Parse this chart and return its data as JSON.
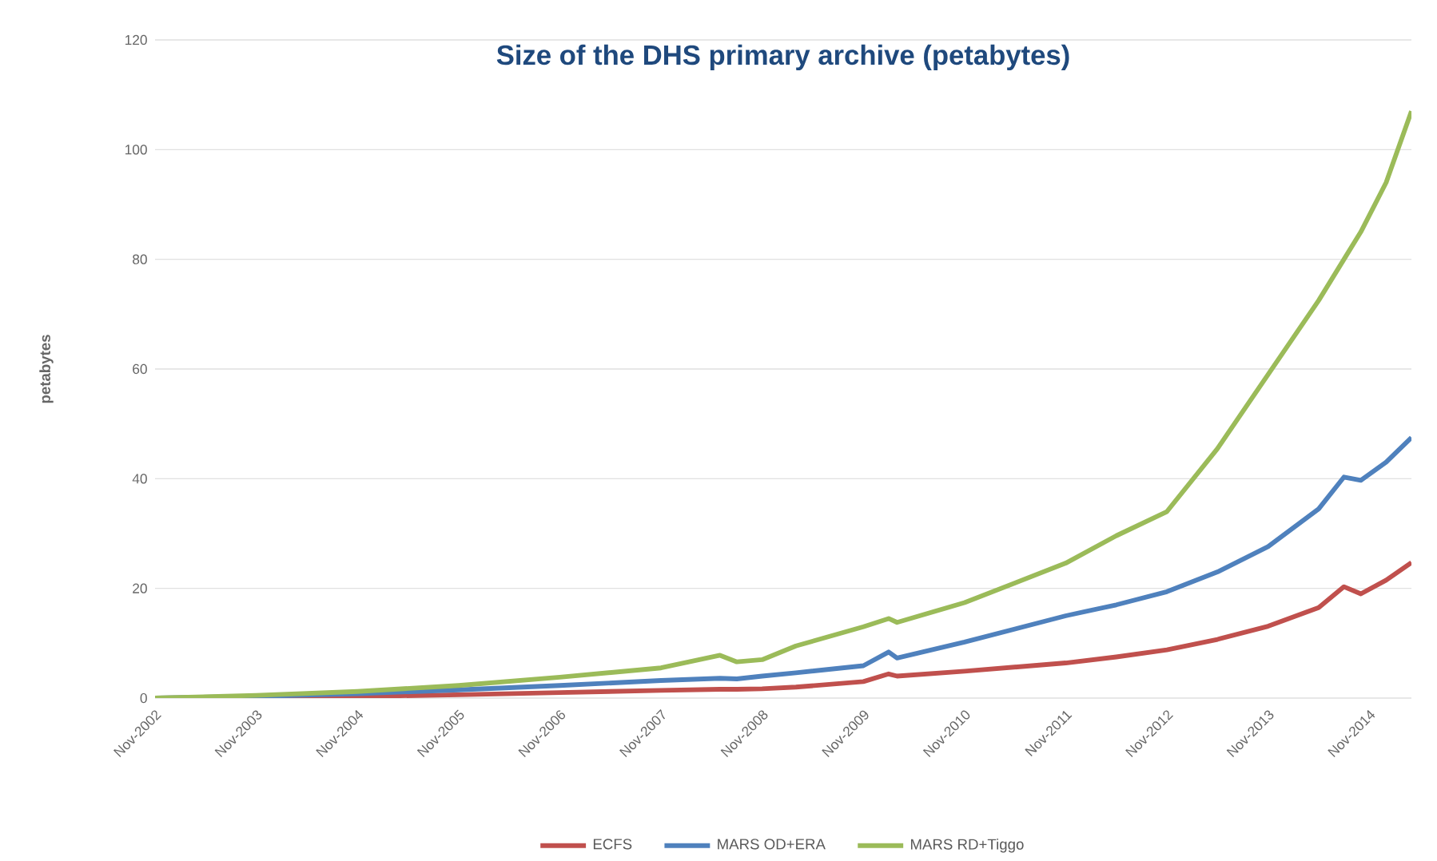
{
  "chart_data": {
    "type": "line",
    "title": "Size of the DHS primary archive (petabytes)",
    "ylabel": "petabytes",
    "x": [
      "2002-11",
      "2003-11",
      "2004-11",
      "2005-11",
      "2006-11",
      "2007-11",
      "2008-06",
      "2008-08",
      "2008-11",
      "2009-03",
      "2009-11",
      "2010-02",
      "2010-03",
      "2010-11",
      "2011-11",
      "2012-05",
      "2012-11",
      "2013-05",
      "2013-11",
      "2014-05",
      "2014-08",
      "2014-10",
      "2015-01",
      "2015-04"
    ],
    "series": [
      {
        "name": "ECFS",
        "color": "#c0504d",
        "values": [
          0,
          0.1,
          0.3,
          0.6,
          1.0,
          1.4,
          1.6,
          1.6,
          1.7,
          2.0,
          3.0,
          4.4,
          4.0,
          4.9,
          6.4,
          7.5,
          8.8,
          10.7,
          13.1,
          16.5,
          20.3,
          19.0,
          21.5,
          24.7
        ]
      },
      {
        "name": "MARS OD+ERA",
        "color": "#4f81bd",
        "values": [
          0,
          0.3,
          0.8,
          1.5,
          2.3,
          3.2,
          3.6,
          3.5,
          4.0,
          4.6,
          5.9,
          8.4,
          7.3,
          10.2,
          15.0,
          17.0,
          19.4,
          23.0,
          27.6,
          34.5,
          40.3,
          39.7,
          43,
          47.5
        ]
      },
      {
        "name": "MARS RD+Tiggo",
        "color": "#9bbb59",
        "values": [
          0,
          0.5,
          1.2,
          2.3,
          3.8,
          5.5,
          7.8,
          6.6,
          7.0,
          9.5,
          13.0,
          14.5,
          13.8,
          17.4,
          24.6,
          29.6,
          34.0,
          45.5,
          59,
          72.5,
          80,
          85,
          94,
          107
        ]
      }
    ],
    "xlim": [
      "2002-11",
      "2015-04"
    ],
    "xticks": [
      {
        "value": "2002-11",
        "label": "Nov-2002"
      },
      {
        "value": "2003-11",
        "label": "Nov-2003"
      },
      {
        "value": "2004-11",
        "label": "Nov-2004"
      },
      {
        "value": "2005-11",
        "label": "Nov-2005"
      },
      {
        "value": "2006-11",
        "label": "Nov-2006"
      },
      {
        "value": "2007-11",
        "label": "Nov-2007"
      },
      {
        "value": "2008-11",
        "label": "Nov-2008"
      },
      {
        "value": "2009-11",
        "label": "Nov-2009"
      },
      {
        "value": "2010-11",
        "label": "Nov-2010"
      },
      {
        "value": "2011-11",
        "label": "Nov-2011"
      },
      {
        "value": "2012-11",
        "label": "Nov-2012"
      },
      {
        "value": "2013-11",
        "label": "Nov-2013"
      },
      {
        "value": "2014-11",
        "label": "Nov-2014"
      }
    ],
    "ylim": [
      0,
      120
    ],
    "yticks": [
      0,
      20,
      40,
      60,
      80,
      100,
      120
    ],
    "grid": "y",
    "legend": "bottom",
    "line_style": "solid"
  }
}
